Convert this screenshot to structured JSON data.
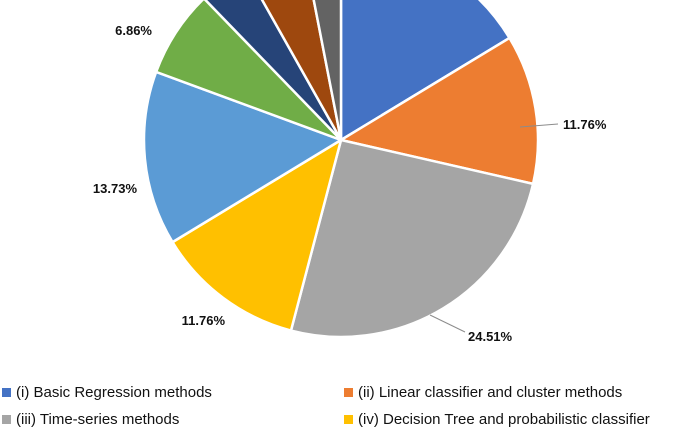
{
  "chart_data": {
    "type": "pie",
    "title": "",
    "start_angle_deg": 0,
    "direction": "clockwise",
    "slices": [
      {
        "label": "(i) Basic Regression methods",
        "value": 15.69,
        "color": "#4472C4",
        "data_label": ""
      },
      {
        "label": "(ii) Linear classifier and cluster methods",
        "value": 11.76,
        "color": "#ED7D31",
        "data_label": "11.76%"
      },
      {
        "label": "(iii) Time-series methods",
        "value": 24.51,
        "color": "#A5A5A5",
        "data_label": "24.51%"
      },
      {
        "label": "(iv) Decision Tree and probabilistic classifier",
        "value": 11.76,
        "color": "#FFC000",
        "data_label": "11.76%"
      },
      {
        "label": "",
        "value": 13.73,
        "color": "#5B9BD5",
        "data_label": "13.73%"
      },
      {
        "label": "",
        "value": 6.86,
        "color": "#70AD47",
        "data_label": "6.86%"
      },
      {
        "label": "",
        "value": 3.92,
        "color": "#264478",
        "data_label": ""
      },
      {
        "label": "",
        "value": 4.9,
        "color": "#9E480E",
        "data_label": ""
      },
      {
        "label": "",
        "value": 2.94,
        "color": "#636363",
        "data_label": ""
      }
    ],
    "legend": {
      "placement": "bottom",
      "entries": [
        {
          "label": "(i) Basic Regression methods",
          "color": "#4472C4"
        },
        {
          "label": "(ii) Linear classifier and cluster methods",
          "color": "#ED7D31"
        },
        {
          "label": "(iii) Time-series methods",
          "color": "#A5A5A5"
        },
        {
          "label": "(iv) Decision Tree and probabilistic classifier",
          "color": "#FFC000"
        }
      ]
    }
  }
}
